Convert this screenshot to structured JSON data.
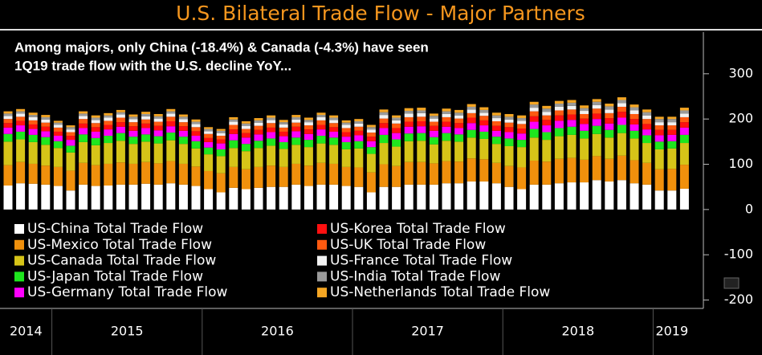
{
  "chart_data": {
    "type": "stacked_bar",
    "title": "U.S. Bilateral Trade Flow - Major Partners",
    "subtitle_lines": [
      "Among majors, only China (-18.4%) & Canada (-4.3%) have seen",
      "1Q19 trade flow with the U.S. decline YoY..."
    ],
    "categories": [
      "2014",
      "2014",
      "2014",
      "2014",
      "2015",
      "2015",
      "2015",
      "2015",
      "2015",
      "2015",
      "2015",
      "2015",
      "2015",
      "2015",
      "2015",
      "2015",
      "2016",
      "2016",
      "2016",
      "2016",
      "2016",
      "2016",
      "2016",
      "2016",
      "2016",
      "2016",
      "2016",
      "2016",
      "2017",
      "2017",
      "2017",
      "2017",
      "2017",
      "2017",
      "2017",
      "2017",
      "2017",
      "2017",
      "2017",
      "2017",
      "2018",
      "2018",
      "2018",
      "2018",
      "2018",
      "2018",
      "2018",
      "2018",
      "2018",
      "2018",
      "2018",
      "2018",
      "2019",
      "2019",
      "2019"
    ],
    "ylim": [
      -215,
      392
    ],
    "yticks": [
      -200,
      -100,
      0,
      100,
      200,
      300
    ],
    "series": [
      {
        "name": "US-China Total Trade Flow",
        "color": "#ffffff",
        "values": [
          53,
          58,
          57,
          55,
          52,
          42,
          55,
          52,
          53,
          55,
          55,
          57,
          55,
          58,
          55,
          52,
          45,
          38,
          48,
          45,
          48,
          50,
          50,
          55,
          52,
          55,
          55,
          52,
          50,
          38,
          50,
          50,
          55,
          55,
          55,
          58,
          58,
          62,
          62,
          58,
          50,
          45,
          55,
          55,
          58,
          60,
          60,
          65,
          62,
          65,
          58,
          55,
          42,
          42,
          46
        ]
      },
      {
        "name": "US-Mexico Total Trade Flow",
        "color": "#f0900c",
        "values": [
          45,
          47,
          44,
          42,
          42,
          44,
          48,
          46,
          48,
          49,
          46,
          48,
          47,
          49,
          46,
          43,
          40,
          42,
          46,
          44,
          46,
          47,
          44,
          46,
          45,
          48,
          46,
          42,
          43,
          44,
          50,
          46,
          50,
          50,
          47,
          49,
          48,
          51,
          49,
          45,
          46,
          48,
          53,
          51,
          54,
          54,
          50,
          53,
          50,
          54,
          51,
          48,
          47,
          48,
          53
        ]
      },
      {
        "name": "US-Canada Total Trade Flow",
        "color": "#d6c418",
        "values": [
          52,
          50,
          48,
          46,
          42,
          40,
          46,
          44,
          46,
          48,
          44,
          45,
          44,
          46,
          44,
          40,
          37,
          38,
          42,
          40,
          42,
          44,
          40,
          42,
          41,
          43,
          42,
          39,
          42,
          41,
          47,
          43,
          46,
          47,
          42,
          45,
          44,
          46,
          45,
          42,
          44,
          45,
          51,
          48,
          50,
          51,
          47,
          49,
          47,
          50,
          48,
          44,
          44,
          45,
          48
        ]
      },
      {
        "name": "US-Japan Total Trade Flow",
        "color": "#1ee61e",
        "values": [
          17,
          17,
          16,
          17,
          15,
          15,
          17,
          16,
          16,
          17,
          16,
          16,
          16,
          17,
          16,
          16,
          15,
          15,
          17,
          16,
          16,
          16,
          15,
          16,
          16,
          17,
          16,
          16,
          16,
          15,
          18,
          16,
          17,
          17,
          16,
          17,
          16,
          17,
          16,
          16,
          17,
          16,
          19,
          17,
          18,
          18,
          17,
          18,
          17,
          18,
          17,
          17,
          17,
          16,
          18
        ]
      },
      {
        "name": "US-Germany Total Trade Flow",
        "color": "#ff00ff",
        "values": [
          14,
          14,
          13,
          13,
          12,
          13,
          14,
          14,
          14,
          14,
          13,
          14,
          13,
          14,
          13,
          12,
          12,
          13,
          14,
          14,
          14,
          14,
          13,
          14,
          13,
          14,
          13,
          12,
          13,
          13,
          15,
          14,
          15,
          15,
          14,
          14,
          14,
          15,
          14,
          13,
          14,
          14,
          16,
          15,
          16,
          15,
          15,
          15,
          14,
          16,
          14,
          13,
          14,
          14,
          16
        ]
      },
      {
        "name": "US-Korea Total Trade Flow",
        "color": "#ff1010",
        "values": [
          10,
          10,
          10,
          10,
          9,
          9,
          10,
          10,
          10,
          10,
          10,
          10,
          10,
          11,
          10,
          10,
          9,
          9,
          10,
          10,
          10,
          10,
          10,
          10,
          10,
          10,
          10,
          10,
          10,
          10,
          11,
          11,
          11,
          11,
          11,
          11,
          11,
          12,
          11,
          11,
          11,
          11,
          12,
          12,
          12,
          12,
          12,
          12,
          12,
          13,
          12,
          12,
          12,
          11,
          12
        ]
      },
      {
        "name": "US-UK Total Trade Flow",
        "color": "#ff5a10",
        "values": [
          9,
          9,
          9,
          9,
          9,
          8,
          10,
          9,
          9,
          10,
          9,
          9,
          9,
          10,
          9,
          9,
          9,
          8,
          10,
          9,
          9,
          10,
          9,
          9,
          9,
          10,
          9,
          9,
          9,
          9,
          10,
          10,
          10,
          10,
          9,
          10,
          10,
          10,
          10,
          10,
          10,
          10,
          11,
          10,
          11,
          11,
          10,
          11,
          11,
          11,
          11,
          11,
          10,
          10,
          11
        ]
      },
      {
        "name": "US-France Total Trade Flow",
        "color": "#f2f2f2",
        "values": [
          7,
          7,
          7,
          7,
          6,
          6,
          7,
          7,
          7,
          7,
          7,
          7,
          7,
          7,
          7,
          7,
          6,
          6,
          7,
          7,
          7,
          7,
          7,
          7,
          7,
          7,
          7,
          7,
          7,
          7,
          8,
          7,
          8,
          8,
          7,
          7,
          7,
          8,
          7,
          7,
          7,
          7,
          8,
          8,
          8,
          8,
          7,
          8,
          8,
          8,
          8,
          8,
          7,
          7,
          8
        ]
      },
      {
        "name": "US-India Total Trade Flow",
        "color": "#9a9a9a",
        "values": [
          5,
          5,
          5,
          5,
          5,
          5,
          5,
          5,
          5,
          5,
          5,
          5,
          5,
          5,
          5,
          5,
          5,
          5,
          5,
          5,
          5,
          5,
          5,
          5,
          5,
          5,
          5,
          5,
          5,
          5,
          6,
          6,
          6,
          6,
          6,
          6,
          6,
          6,
          6,
          6,
          6,
          6,
          7,
          7,
          7,
          7,
          6,
          7,
          7,
          7,
          7,
          7,
          7,
          7,
          7
        ]
      },
      {
        "name": "US-Netherlands Total Trade Flow",
        "color": "#f5a623",
        "values": [
          5,
          5,
          5,
          5,
          4,
          4,
          5,
          5,
          5,
          5,
          5,
          5,
          5,
          5,
          5,
          5,
          4,
          4,
          5,
          5,
          5,
          5,
          5,
          5,
          5,
          5,
          5,
          5,
          5,
          5,
          6,
          5,
          6,
          6,
          5,
          6,
          6,
          6,
          6,
          6,
          6,
          6,
          6,
          6,
          6,
          6,
          6,
          6,
          6,
          6,
          6,
          6,
          5,
          5,
          6
        ]
      }
    ]
  }
}
